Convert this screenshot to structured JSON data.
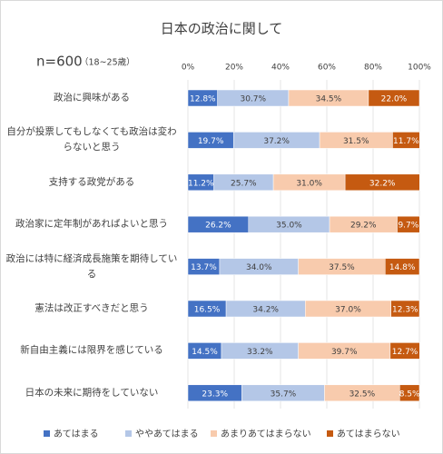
{
  "chart_data": {
    "type": "stacked_barh",
    "title": "日本の政治に関して",
    "sample_size": "n=600",
    "sample_note": "（18~25歳）",
    "categories": [
      "政治に興味がある",
      "自分が投票してもしなくても政治は変わらないと思う",
      "支持する政党がある",
      "政治家に定年制があればよいと思う",
      "政治には特に経済成長施策を期待している",
      "憲法は改正すべきだと思う",
      "新自由主義には限界を感じている",
      "日本の未来に期待をしていない"
    ],
    "series": [
      {
        "name": "あてはまる",
        "color": "#4472c4",
        "values": [
          12.8,
          19.7,
          11.2,
          26.2,
          13.7,
          16.5,
          14.5,
          23.3
        ],
        "value_labels": [
          "12.8%",
          "19.7%",
          "11.2%",
          "26.2%",
          "13.7%",
          "16.5%",
          "14.5%",
          "23.3%"
        ]
      },
      {
        "name": "ややあてはまる",
        "color": "#b4c7e7",
        "values": [
          30.7,
          37.2,
          25.7,
          35.0,
          34.0,
          34.2,
          33.2,
          35.7
        ],
        "value_labels": [
          "30.7%",
          "37.2%",
          "25.7%",
          "35.0%",
          "34.0%",
          "34.2%",
          "33.2%",
          "35.7%"
        ]
      },
      {
        "name": "あまりあてはまらない",
        "color": "#f8cbad",
        "values": [
          34.5,
          31.5,
          31.0,
          29.2,
          37.5,
          37.0,
          39.7,
          32.5
        ],
        "value_labels": [
          "34.5%",
          "31.5%",
          "31.0%",
          "29.2%",
          "37.5%",
          "37.0%",
          "39.7%",
          "32.5%"
        ]
      },
      {
        "name": "あてはまらない",
        "color": "#c55a11",
        "values": [
          22.0,
          11.7,
          32.2,
          9.7,
          14.8,
          12.3,
          12.7,
          8.5
        ],
        "value_labels": [
          "22.0%",
          "11.7%",
          "32.2%",
          "9.7%",
          "14.8%",
          "12.3%",
          "12.7%",
          "8.5%"
        ]
      }
    ],
    "xlim": [
      0,
      100
    ],
    "xticks": [
      {
        "value": 0,
        "label": "0%"
      },
      {
        "value": 20,
        "label": "20%"
      },
      {
        "value": 40,
        "label": "40%"
      },
      {
        "value": 60,
        "label": "60%"
      },
      {
        "value": 80,
        "label": "80%"
      },
      {
        "value": 100,
        "label": "100%"
      }
    ],
    "grid": true,
    "legend": "bottom"
  }
}
